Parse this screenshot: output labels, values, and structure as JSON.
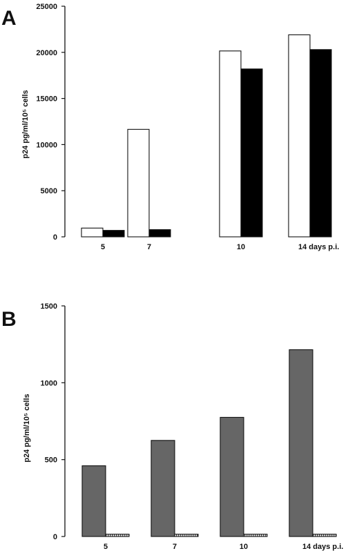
{
  "chart_data": [
    {
      "panel": "A",
      "type": "bar",
      "categories": [
        "5",
        "7",
        "10",
        "14 days p.i."
      ],
      "ylabel": "p24 pg/ml/10⁵ cells",
      "ylim": [
        0,
        25000
      ],
      "yticks": [
        "0",
        "5000",
        "10000",
        "15000",
        "20000",
        "25000"
      ],
      "yticks_values": [
        0,
        5000,
        10000,
        15000,
        20000,
        25000
      ],
      "series": [
        {
          "fill": "#ffffff",
          "values": [
            950,
            11650,
            20150,
            21900
          ]
        },
        {
          "fill": "#000000",
          "values": [
            700,
            780,
            18200,
            20300
          ]
        }
      ]
    },
    {
      "panel": "B",
      "type": "bar",
      "categories": [
        "5",
        "7",
        "10",
        "14 days p.i."
      ],
      "ylabel": "p24 pg/ml/10⁵ cells",
      "ylim": [
        0,
        1500
      ],
      "yticks": [
        "0",
        "500",
        "1000",
        "1500"
      ],
      "yticks_values": [
        0,
        500,
        1000,
        1500
      ],
      "series": [
        {
          "fill": "#666666",
          "values": [
            460,
            625,
            775,
            1215
          ]
        },
        {
          "fill": "#bbbbbb",
          "pattern": "hatched",
          "values": [
            15,
            15,
            15,
            15
          ]
        }
      ]
    }
  ]
}
